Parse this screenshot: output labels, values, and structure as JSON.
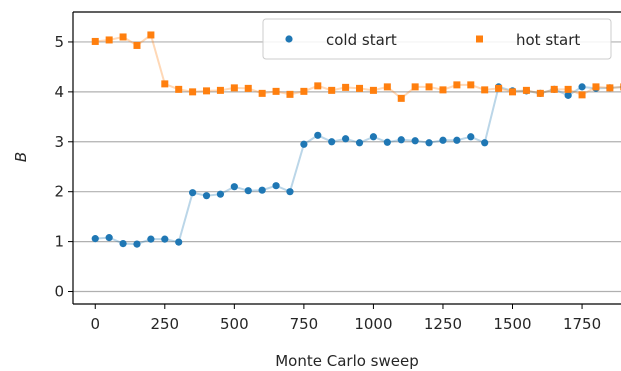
{
  "chart_data": {
    "type": "scatter",
    "xlabel": "Monte Carlo sweep",
    "ylabel": "B",
    "xlim": [
      -80,
      1890
    ],
    "ylim": [
      -0.25,
      5.6
    ],
    "xticks": [
      0,
      250,
      500,
      750,
      1000,
      1250,
      1500,
      1750
    ],
    "yticks": [
      0,
      1,
      2,
      3,
      4,
      5
    ],
    "grid": "horizontal",
    "legend": "top-right",
    "x": [
      0,
      50,
      100,
      150,
      200,
      250,
      300,
      350,
      400,
      450,
      500,
      550,
      600,
      650,
      700,
      750,
      800,
      850,
      900,
      950,
      1000,
      1050,
      1100,
      1150,
      1200,
      1250,
      1300,
      1350,
      1400,
      1450,
      1500,
      1550,
      1600,
      1650,
      1700,
      1750,
      1800,
      1850,
      1900
    ],
    "series": [
      {
        "name": "cold start",
        "color": "#1f77b4",
        "marker": "circle",
        "values": [
          1.06,
          1.08,
          0.96,
          0.95,
          1.05,
          1.05,
          0.99,
          1.98,
          1.92,
          1.95,
          2.1,
          2.02,
          2.03,
          2.12,
          2.0,
          2.95,
          3.13,
          3.0,
          3.06,
          2.98,
          3.1,
          2.99,
          3.04,
          3.02,
          2.98,
          3.03,
          3.03,
          3.1,
          2.98,
          4.1,
          4.02,
          4.02,
          3.97,
          4.05,
          3.93,
          4.1,
          4.07,
          4.08,
          4.1
        ]
      },
      {
        "name": "hot start",
        "color": "#ff7f0e",
        "marker": "square",
        "values": [
          5.01,
          5.04,
          5.1,
          4.93,
          5.14,
          4.16,
          4.05,
          4.0,
          4.02,
          4.03,
          4.08,
          4.07,
          3.97,
          4.01,
          3.95,
          4.01,
          4.12,
          4.03,
          4.09,
          4.07,
          4.03,
          4.1,
          3.87,
          4.1,
          4.1,
          4.04,
          4.14,
          4.14,
          4.04,
          4.07,
          4.0,
          4.03,
          3.97,
          4.05,
          4.05,
          3.94,
          4.1,
          4.08,
          4.1
        ]
      }
    ]
  }
}
